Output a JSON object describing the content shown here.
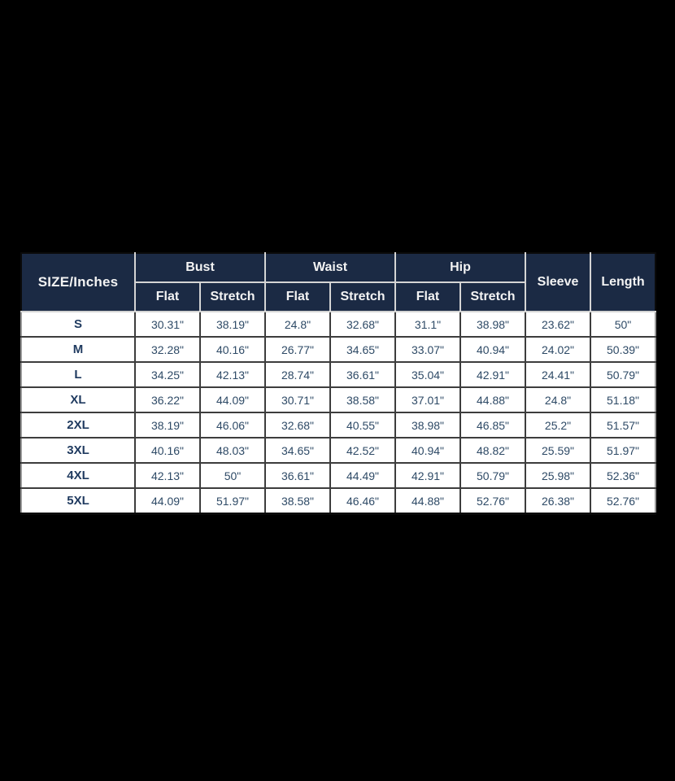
{
  "page": {
    "background": "#000000"
  },
  "colors": {
    "header_bg": "#1b2a44",
    "header_text": "#f3f3f3",
    "cell_bg": "#ffffff",
    "cell_text": "#2e4a66",
    "size_text": "#1f3a5f",
    "grid_light": "#d4d4d4",
    "grid_dark": "#3d3d3d"
  },
  "chart_data": {
    "type": "table",
    "corner_label": "SIZE/Inches",
    "column_groups": [
      {
        "label": "Bust",
        "children": [
          "Flat",
          "Stretch"
        ]
      },
      {
        "label": "Waist",
        "children": [
          "Flat",
          "Stretch"
        ]
      },
      {
        "label": "Hip",
        "children": [
          "Flat",
          "Stretch"
        ]
      },
      {
        "label": "Sleeve",
        "children": []
      },
      {
        "label": "Length",
        "children": []
      }
    ],
    "flat_columns": [
      "Size",
      "Bust Flat",
      "Bust Stretch",
      "Waist Flat",
      "Waist Stretch",
      "Hip Flat",
      "Hip Stretch",
      "Sleeve",
      "Length"
    ],
    "rows": [
      {
        "size": "S",
        "values": [
          "30.31\"",
          "38.19\"",
          "24.8\"",
          "32.68\"",
          "31.1\"",
          "38.98\"",
          "23.62\"",
          "50\""
        ]
      },
      {
        "size": "M",
        "values": [
          "32.28\"",
          "40.16\"",
          "26.77\"",
          "34.65\"",
          "33.07\"",
          "40.94\"",
          "24.02\"",
          "50.39\""
        ]
      },
      {
        "size": "L",
        "values": [
          "34.25\"",
          "42.13\"",
          "28.74\"",
          "36.61\"",
          "35.04\"",
          "42.91\"",
          "24.41\"",
          "50.79\""
        ]
      },
      {
        "size": "XL",
        "values": [
          "36.22\"",
          "44.09\"",
          "30.71\"",
          "38.58\"",
          "37.01\"",
          "44.88\"",
          "24.8\"",
          "51.18\""
        ]
      },
      {
        "size": "2XL",
        "values": [
          "38.19\"",
          "46.06\"",
          "32.68\"",
          "40.55\"",
          "38.98\"",
          "46.85\"",
          "25.2\"",
          "51.57\""
        ]
      },
      {
        "size": "3XL",
        "values": [
          "40.16\"",
          "48.03\"",
          "34.65\"",
          "42.52\"",
          "40.94\"",
          "48.82\"",
          "25.59\"",
          "51.97\""
        ]
      },
      {
        "size": "4XL",
        "values": [
          "42.13\"",
          "50\"",
          "36.61\"",
          "44.49\"",
          "42.91\"",
          "50.79\"",
          "25.98\"",
          "52.36\""
        ]
      },
      {
        "size": "5XL",
        "values": [
          "44.09\"",
          "51.97\"",
          "38.58\"",
          "46.46\"",
          "44.88\"",
          "52.76\"",
          "26.38\"",
          "52.76\""
        ]
      }
    ]
  }
}
